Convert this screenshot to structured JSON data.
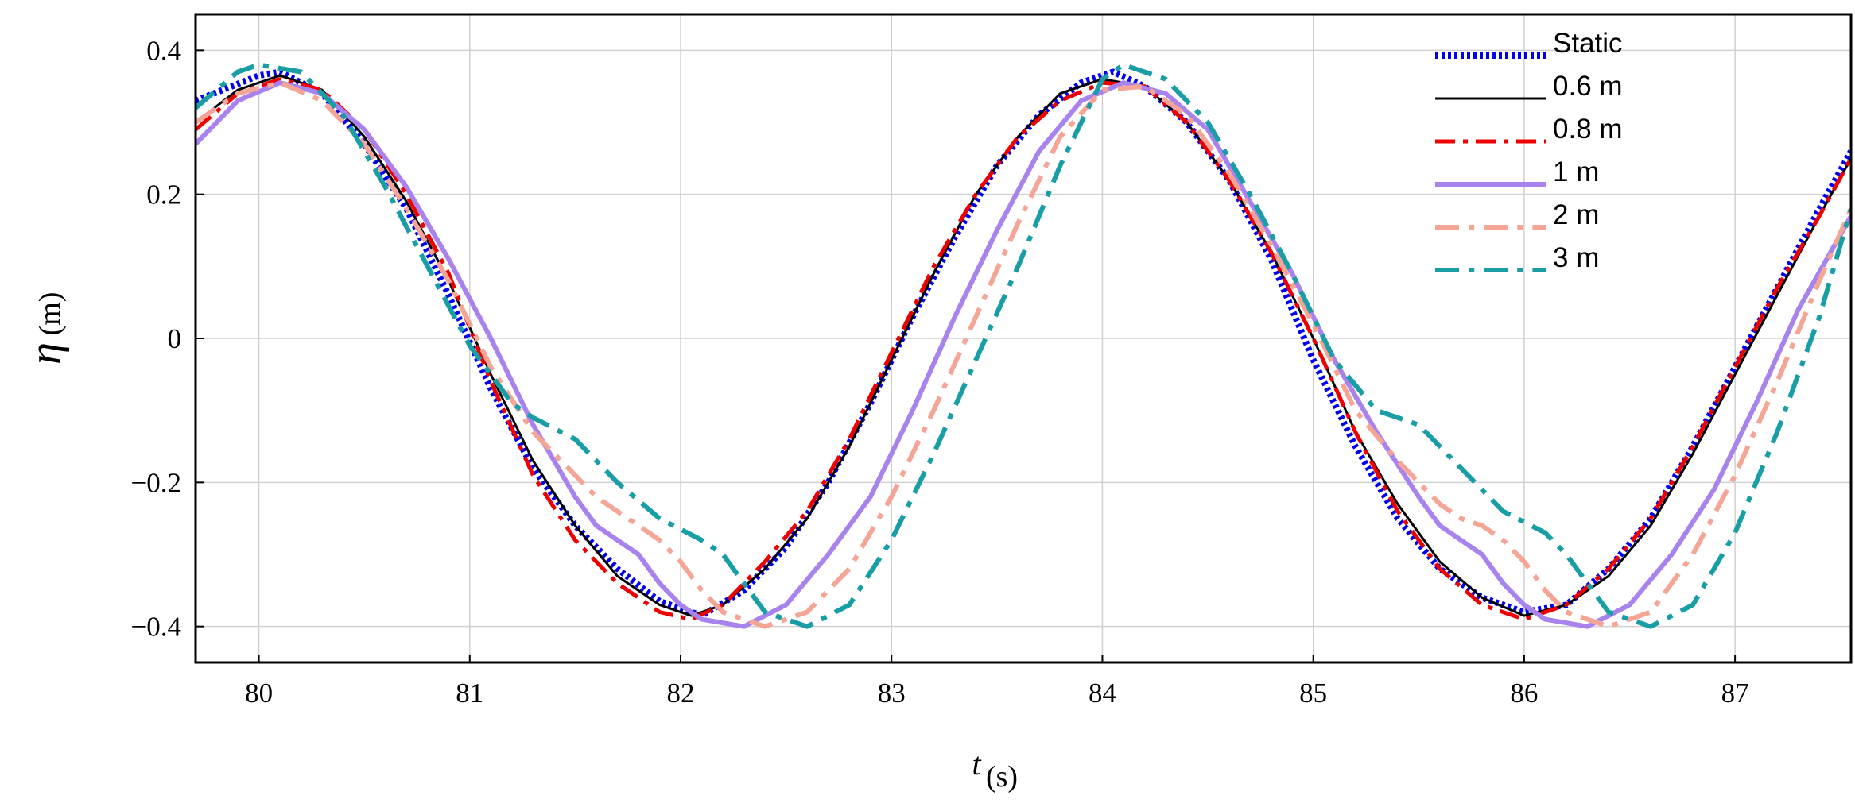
{
  "chart_data": {
    "type": "line",
    "title": "",
    "xlabel": {
      "symbol": "t",
      "unit": "(s)"
    },
    "ylabel": {
      "symbol": "η",
      "unit": "(m)"
    },
    "xlim": [
      79.7,
      87.55
    ],
    "ylim": [
      -0.45,
      0.45
    ],
    "grid": true,
    "legend_position": "top-right",
    "x_ticks": [
      80,
      81,
      82,
      83,
      84,
      85,
      86,
      87
    ],
    "x_tick_labels": [
      "80",
      "81",
      "82",
      "83",
      "84",
      "85",
      "86",
      "87"
    ],
    "y_ticks": [
      0.4,
      0.2,
      0,
      -0.2,
      -0.4
    ],
    "y_tick_labels": [
      "0.4",
      "0.2",
      "0",
      "−0.2",
      "−0.4"
    ],
    "series": [
      {
        "name": "Static",
        "color": "#0000ee",
        "dash": "dotted",
        "width": 8,
        "points": [
          [
            79.7,
            0.33
          ],
          [
            80.0,
            0.365
          ],
          [
            80.1,
            0.37
          ],
          [
            80.3,
            0.34
          ],
          [
            80.5,
            0.27
          ],
          [
            80.7,
            0.18
          ],
          [
            80.9,
            0.06
          ],
          [
            81.1,
            -0.07
          ],
          [
            81.3,
            -0.18
          ],
          [
            81.5,
            -0.26
          ],
          [
            81.7,
            -0.32
          ],
          [
            81.9,
            -0.365
          ],
          [
            82.1,
            -0.385
          ],
          [
            82.3,
            -0.35
          ],
          [
            82.5,
            -0.29
          ],
          [
            82.7,
            -0.2
          ],
          [
            82.9,
            -0.09
          ],
          [
            83.1,
            0.03
          ],
          [
            83.3,
            0.14
          ],
          [
            83.5,
            0.24
          ],
          [
            83.7,
            0.31
          ],
          [
            83.9,
            0.355
          ],
          [
            84.05,
            0.37
          ],
          [
            84.2,
            0.35
          ],
          [
            84.4,
            0.3
          ],
          [
            84.6,
            0.22
          ],
          [
            84.8,
            0.11
          ],
          [
            85.0,
            -0.03
          ],
          [
            85.2,
            -0.15
          ],
          [
            85.4,
            -0.25
          ],
          [
            85.6,
            -0.32
          ],
          [
            85.8,
            -0.36
          ],
          [
            86.0,
            -0.38
          ],
          [
            86.2,
            -0.37
          ],
          [
            86.4,
            -0.32
          ],
          [
            86.6,
            -0.25
          ],
          [
            86.8,
            -0.15
          ],
          [
            87.0,
            -0.04
          ],
          [
            87.2,
            0.07
          ],
          [
            87.4,
            0.18
          ],
          [
            87.55,
            0.26
          ]
        ]
      },
      {
        "name": "0.6 m",
        "color": "#000000",
        "dash": "solid",
        "width": 3,
        "points": [
          [
            79.7,
            0.3
          ],
          [
            79.9,
            0.345
          ],
          [
            80.1,
            0.365
          ],
          [
            80.3,
            0.345
          ],
          [
            80.5,
            0.28
          ],
          [
            80.7,
            0.19
          ],
          [
            80.9,
            0.08
          ],
          [
            81.1,
            -0.05
          ],
          [
            81.3,
            -0.17
          ],
          [
            81.5,
            -0.26
          ],
          [
            81.7,
            -0.33
          ],
          [
            81.9,
            -0.37
          ],
          [
            82.05,
            -0.385
          ],
          [
            82.2,
            -0.37
          ],
          [
            82.4,
            -0.32
          ],
          [
            82.6,
            -0.25
          ],
          [
            82.8,
            -0.15
          ],
          [
            83.0,
            -0.03
          ],
          [
            83.2,
            0.09
          ],
          [
            83.4,
            0.2
          ],
          [
            83.6,
            0.28
          ],
          [
            83.8,
            0.34
          ],
          [
            84.0,
            0.36
          ],
          [
            84.2,
            0.35
          ],
          [
            84.4,
            0.3
          ],
          [
            84.6,
            0.22
          ],
          [
            84.8,
            0.12
          ],
          [
            85.0,
            0.0
          ],
          [
            85.2,
            -0.13
          ],
          [
            85.4,
            -0.23
          ],
          [
            85.6,
            -0.31
          ],
          [
            85.8,
            -0.36
          ],
          [
            86.0,
            -0.385
          ],
          [
            86.2,
            -0.37
          ],
          [
            86.4,
            -0.33
          ],
          [
            86.6,
            -0.26
          ],
          [
            86.8,
            -0.16
          ],
          [
            87.0,
            -0.05
          ],
          [
            87.2,
            0.06
          ],
          [
            87.4,
            0.17
          ],
          [
            87.55,
            0.25
          ]
        ]
      },
      {
        "name": "0.8 m",
        "color": "#ee0000",
        "dash": "dashdot",
        "width": 5,
        "points": [
          [
            79.7,
            0.29
          ],
          [
            79.9,
            0.34
          ],
          [
            80.1,
            0.36
          ],
          [
            80.3,
            0.345
          ],
          [
            80.5,
            0.29
          ],
          [
            80.7,
            0.2
          ],
          [
            80.9,
            0.09
          ],
          [
            81.1,
            -0.06
          ],
          [
            81.3,
            -0.19
          ],
          [
            81.5,
            -0.28
          ],
          [
            81.7,
            -0.34
          ],
          [
            81.9,
            -0.38
          ],
          [
            82.05,
            -0.39
          ],
          [
            82.2,
            -0.37
          ],
          [
            82.4,
            -0.31
          ],
          [
            82.6,
            -0.24
          ],
          [
            82.8,
            -0.14
          ],
          [
            83.0,
            -0.02
          ],
          [
            83.2,
            0.1
          ],
          [
            83.4,
            0.2
          ],
          [
            83.6,
            0.28
          ],
          [
            83.8,
            0.33
          ],
          [
            84.0,
            0.355
          ],
          [
            84.2,
            0.35
          ],
          [
            84.4,
            0.3
          ],
          [
            84.6,
            0.22
          ],
          [
            84.8,
            0.12
          ],
          [
            85.0,
            0.0
          ],
          [
            85.2,
            -0.13
          ],
          [
            85.4,
            -0.24
          ],
          [
            85.6,
            -0.32
          ],
          [
            85.8,
            -0.37
          ],
          [
            86.0,
            -0.39
          ],
          [
            86.2,
            -0.37
          ],
          [
            86.4,
            -0.32
          ],
          [
            86.6,
            -0.25
          ],
          [
            86.8,
            -0.15
          ],
          [
            87.0,
            -0.04
          ],
          [
            87.2,
            0.07
          ],
          [
            87.4,
            0.17
          ],
          [
            87.55,
            0.25
          ]
        ]
      },
      {
        "name": "1 m",
        "color": "#a883ee",
        "dash": "solid",
        "width": 6,
        "points": [
          [
            79.7,
            0.27
          ],
          [
            79.9,
            0.33
          ],
          [
            80.1,
            0.355
          ],
          [
            80.3,
            0.34
          ],
          [
            80.5,
            0.29
          ],
          [
            80.7,
            0.21
          ],
          [
            80.9,
            0.11
          ],
          [
            81.1,
            0.0
          ],
          [
            81.3,
            -0.12
          ],
          [
            81.5,
            -0.22
          ],
          [
            81.6,
            -0.26
          ],
          [
            81.7,
            -0.28
          ],
          [
            81.8,
            -0.3
          ],
          [
            81.9,
            -0.34
          ],
          [
            82.0,
            -0.37
          ],
          [
            82.1,
            -0.39
          ],
          [
            82.3,
            -0.4
          ],
          [
            82.5,
            -0.37
          ],
          [
            82.7,
            -0.3
          ],
          [
            82.9,
            -0.22
          ],
          [
            83.1,
            -0.1
          ],
          [
            83.3,
            0.03
          ],
          [
            83.5,
            0.15
          ],
          [
            83.7,
            0.26
          ],
          [
            83.9,
            0.33
          ],
          [
            84.1,
            0.355
          ],
          [
            84.3,
            0.34
          ],
          [
            84.5,
            0.29
          ],
          [
            84.7,
            0.19
          ],
          [
            84.9,
            0.09
          ],
          [
            85.1,
            -0.03
          ],
          [
            85.3,
            -0.13
          ],
          [
            85.5,
            -0.22
          ],
          [
            85.6,
            -0.26
          ],
          [
            85.7,
            -0.28
          ],
          [
            85.8,
            -0.3
          ],
          [
            85.9,
            -0.34
          ],
          [
            86.0,
            -0.37
          ],
          [
            86.1,
            -0.39
          ],
          [
            86.3,
            -0.4
          ],
          [
            86.5,
            -0.37
          ],
          [
            86.7,
            -0.3
          ],
          [
            86.9,
            -0.21
          ],
          [
            87.1,
            -0.09
          ],
          [
            87.3,
            0.04
          ],
          [
            87.55,
            0.17
          ]
        ]
      },
      {
        "name": "2 m",
        "color": "#f4a596",
        "dash": "dashdot",
        "width": 6,
        "points": [
          [
            79.7,
            0.3
          ],
          [
            79.9,
            0.34
          ],
          [
            80.1,
            0.355
          ],
          [
            80.3,
            0.33
          ],
          [
            80.5,
            0.27
          ],
          [
            80.7,
            0.18
          ],
          [
            80.9,
            0.08
          ],
          [
            81.1,
            -0.04
          ],
          [
            81.3,
            -0.13
          ],
          [
            81.5,
            -0.19
          ],
          [
            81.6,
            -0.22
          ],
          [
            81.7,
            -0.24
          ],
          [
            81.8,
            -0.26
          ],
          [
            81.9,
            -0.28
          ],
          [
            82.0,
            -0.31
          ],
          [
            82.1,
            -0.35
          ],
          [
            82.2,
            -0.38
          ],
          [
            82.4,
            -0.4
          ],
          [
            82.6,
            -0.38
          ],
          [
            82.8,
            -0.32
          ],
          [
            83.0,
            -0.22
          ],
          [
            83.2,
            -0.1
          ],
          [
            83.4,
            0.03
          ],
          [
            83.6,
            0.16
          ],
          [
            83.8,
            0.28
          ],
          [
            84.0,
            0.345
          ],
          [
            84.2,
            0.35
          ],
          [
            84.4,
            0.31
          ],
          [
            84.6,
            0.23
          ],
          [
            84.8,
            0.13
          ],
          [
            85.0,
            0.02
          ],
          [
            85.2,
            -0.1
          ],
          [
            85.4,
            -0.17
          ],
          [
            85.5,
            -0.2
          ],
          [
            85.6,
            -0.23
          ],
          [
            85.7,
            -0.25
          ],
          [
            85.8,
            -0.26
          ],
          [
            85.9,
            -0.28
          ],
          [
            86.0,
            -0.31
          ],
          [
            86.1,
            -0.35
          ],
          [
            86.2,
            -0.38
          ],
          [
            86.4,
            -0.4
          ],
          [
            86.6,
            -0.38
          ],
          [
            86.8,
            -0.3
          ],
          [
            87.0,
            -0.19
          ],
          [
            87.2,
            -0.06
          ],
          [
            87.4,
            0.08
          ],
          [
            87.55,
            0.18
          ]
        ]
      },
      {
        "name": "3 m",
        "color": "#1a9ea6",
        "dash": "dashdot",
        "width": 6,
        "points": [
          [
            79.7,
            0.32
          ],
          [
            79.9,
            0.37
          ],
          [
            80.0,
            0.38
          ],
          [
            80.2,
            0.37
          ],
          [
            80.4,
            0.31
          ],
          [
            80.6,
            0.21
          ],
          [
            80.8,
            0.1
          ],
          [
            81.0,
            -0.01
          ],
          [
            81.2,
            -0.09
          ],
          [
            81.3,
            -0.11
          ],
          [
            81.5,
            -0.14
          ],
          [
            81.7,
            -0.2
          ],
          [
            81.9,
            -0.25
          ],
          [
            82.1,
            -0.28
          ],
          [
            82.2,
            -0.3
          ],
          [
            82.3,
            -0.34
          ],
          [
            82.4,
            -0.38
          ],
          [
            82.6,
            -0.4
          ],
          [
            82.8,
            -0.37
          ],
          [
            83.0,
            -0.28
          ],
          [
            83.2,
            -0.16
          ],
          [
            83.4,
            -0.03
          ],
          [
            83.6,
            0.1
          ],
          [
            83.8,
            0.24
          ],
          [
            84.0,
            0.36
          ],
          [
            84.1,
            0.38
          ],
          [
            84.3,
            0.36
          ],
          [
            84.5,
            0.3
          ],
          [
            84.7,
            0.2
          ],
          [
            84.9,
            0.09
          ],
          [
            85.1,
            -0.03
          ],
          [
            85.3,
            -0.1
          ],
          [
            85.5,
            -0.12
          ],
          [
            85.7,
            -0.18
          ],
          [
            85.9,
            -0.24
          ],
          [
            86.1,
            -0.27
          ],
          [
            86.2,
            -0.3
          ],
          [
            86.3,
            -0.34
          ],
          [
            86.4,
            -0.38
          ],
          [
            86.6,
            -0.4
          ],
          [
            86.8,
            -0.37
          ],
          [
            87.0,
            -0.27
          ],
          [
            87.2,
            -0.13
          ],
          [
            87.4,
            0.03
          ],
          [
            87.55,
            0.18
          ]
        ]
      }
    ]
  }
}
